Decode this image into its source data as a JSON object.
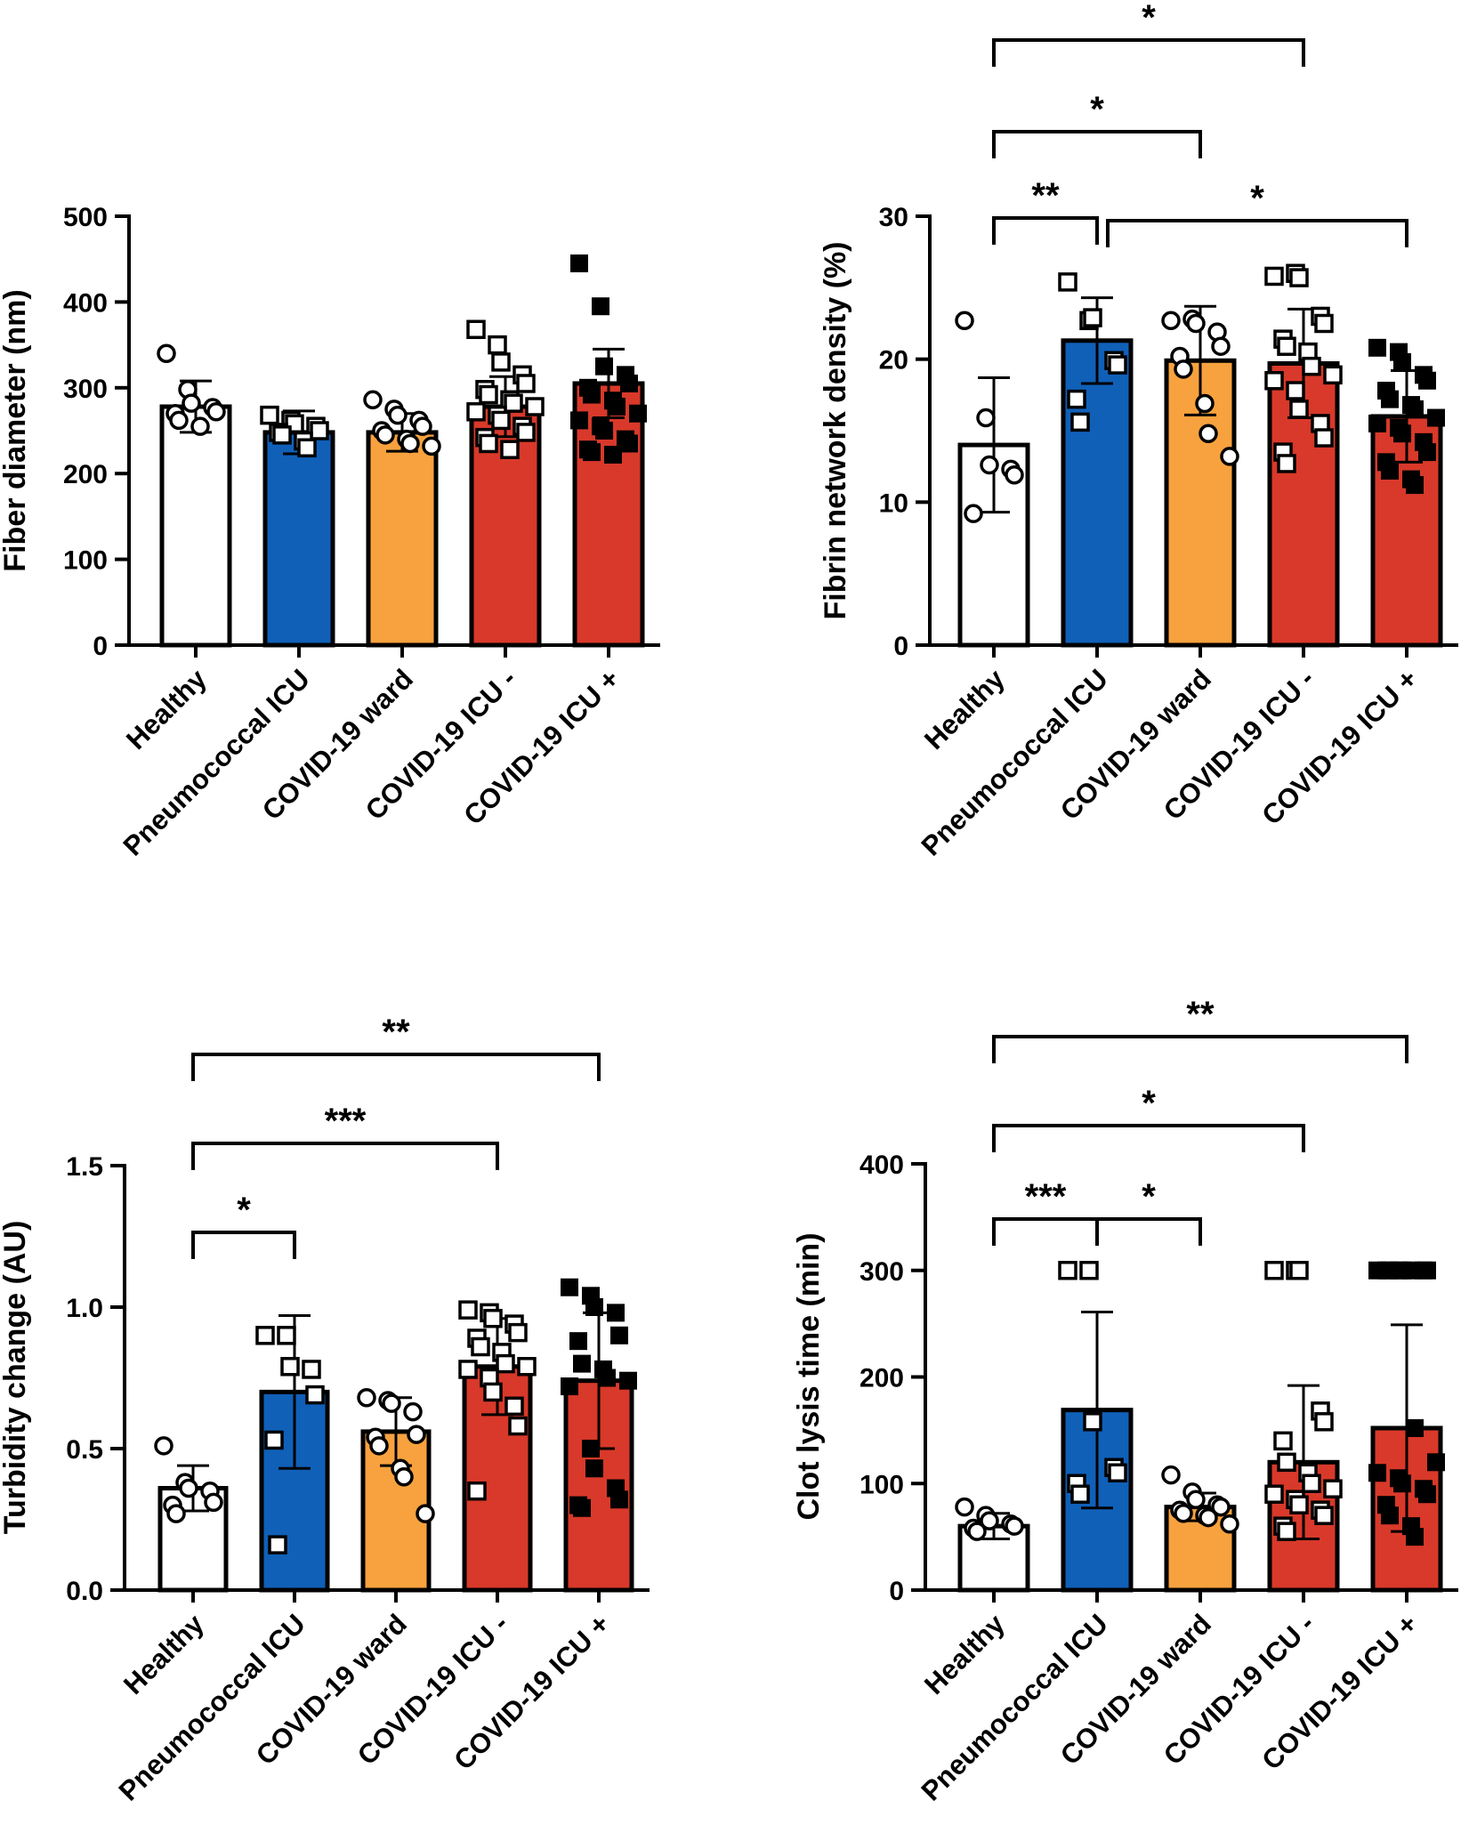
{
  "colors": {
    "healthy": "#ffffff",
    "pneumococcal": "#1060b8",
    "covid_ward": "#f7a23e",
    "covid_icu_neg": "#d8392a",
    "covid_icu_pos": "#d8392a",
    "axis": "#000000"
  },
  "chart_data": [
    {
      "type": "bar",
      "panel": "top-left",
      "categories": [
        "Healthy",
        "Pneumococcal ICU",
        "COVID-19 ward",
        "COVID-19 ICU -",
        "COVID-19 ICU +"
      ],
      "means": [
        278,
        248,
        248,
        278,
        305
      ],
      "sd": [
        30,
        25,
        22,
        35,
        40
      ],
      "points": [
        [
          340,
          298,
          282,
          277,
          272,
          270,
          262,
          255
        ],
        [
          268,
          262,
          258,
          255,
          250,
          248,
          245,
          238,
          230
        ],
        [
          286,
          275,
          268,
          262,
          255,
          250,
          245,
          240,
          235,
          232
        ],
        [
          368,
          350,
          330,
          315,
          305,
          298,
          292,
          286,
          282,
          278,
          272,
          268,
          262,
          255,
          248,
          242,
          235,
          228
        ],
        [
          445,
          395,
          325,
          315,
          305,
          300,
          292,
          285,
          278,
          270,
          262,
          255,
          250,
          240,
          235,
          228,
          225,
          222
        ]
      ],
      "markers": [
        "circle-open",
        "square-open",
        "circle-open",
        "square-open",
        "square-filled"
      ],
      "ylabel": "Fiber diameter (nm)",
      "ylim": [
        0,
        500
      ],
      "yticks": [
        "0",
        "100",
        "200",
        "300",
        "400",
        "500"
      ],
      "significance": []
    },
    {
      "type": "bar",
      "panel": "top-right",
      "categories": [
        "Healthy",
        "Pneumococcal ICU",
        "COVID-19 ward",
        "COVID-19 ICU -",
        "COVID-19 ICU +"
      ],
      "means": [
        14.0,
        21.3,
        19.9,
        19.7,
        16.0
      ],
      "sd": [
        4.7,
        3.0,
        3.8,
        3.8,
        3.2
      ],
      "points": [
        [
          22.7,
          15.9,
          12.6,
          12.3,
          11.9,
          9.2
        ],
        [
          25.4,
          22.7,
          22.9,
          19.9,
          19.6,
          17.2,
          15.6
        ],
        [
          22.7,
          22.8,
          22.5,
          21.9,
          20.9,
          20.2,
          19.3,
          16.9,
          14.8,
          13.2
        ],
        [
          25.8,
          26.0,
          25.7,
          23.0,
          22.5,
          21.4,
          20.9,
          20.5,
          19.5,
          18.9,
          18.5,
          17.8,
          16.5,
          15.5,
          14.5,
          13.5,
          12.7
        ],
        [
          20.8,
          20.5,
          19.8,
          18.9,
          18.5,
          17.8,
          17.2,
          16.8,
          16.5,
          15.9,
          15.5,
          15.2,
          14.8,
          14.2,
          13.5,
          12.8,
          12.2,
          11.6,
          11.2
        ]
      ],
      "markers": [
        "circle-open",
        "square-open",
        "circle-open",
        "square-open",
        "square-filled"
      ],
      "ylabel": "Fibrin network density (%)",
      "ylim": [
        0,
        30
      ],
      "yticks": [
        "0",
        "10",
        "20",
        "30"
      ],
      "significance": [
        {
          "from": 0,
          "to": 3,
          "label": "*"
        },
        {
          "from": 0,
          "to": 2,
          "label": "*"
        },
        {
          "from": 0,
          "to": 1,
          "label": "**"
        },
        {
          "from": 1,
          "to": 4,
          "label": "*"
        }
      ]
    },
    {
      "type": "bar",
      "panel": "bottom-left",
      "categories": [
        "Healthy",
        "Pneumococcal ICU",
        "COVID-19 ward",
        "COVID-19 ICU -",
        "COVID-19 ICU +"
      ],
      "means": [
        0.36,
        0.7,
        0.56,
        0.79,
        0.74
      ],
      "sd": [
        0.08,
        0.27,
        0.12,
        0.17,
        0.24
      ],
      "points": [
        [
          0.51,
          0.38,
          0.36,
          0.35,
          0.31,
          0.3,
          0.27
        ],
        [
          0.9,
          0.9,
          0.79,
          0.78,
          0.69,
          0.53,
          0.16
        ],
        [
          0.68,
          0.67,
          0.66,
          0.63,
          0.55,
          0.54,
          0.51,
          0.43,
          0.4,
          0.27
        ],
        [
          0.99,
          0.98,
          0.96,
          0.94,
          0.91,
          0.89,
          0.86,
          0.84,
          0.8,
          0.79,
          0.78,
          0.75,
          0.7,
          0.65,
          0.58,
          0.35
        ],
        [
          1.07,
          1.04,
          1.0,
          0.98,
          0.9,
          0.88,
          0.8,
          0.78,
          0.75,
          0.74,
          0.72,
          0.5,
          0.43,
          0.36,
          0.32,
          0.3,
          0.29
        ]
      ],
      "markers": [
        "circle-open",
        "square-open",
        "circle-open",
        "square-open",
        "square-filled"
      ],
      "ylabel": "Turbidity change (AU)",
      "ylim": [
        0,
        1.5
      ],
      "yticks": [
        "0.0",
        "0.5",
        "1.0",
        "1.5"
      ],
      "significance": [
        {
          "from": 0,
          "to": 4,
          "label": "**"
        },
        {
          "from": 0,
          "to": 3,
          "label": "***"
        },
        {
          "from": 0,
          "to": 1,
          "label": "*"
        }
      ]
    },
    {
      "type": "bar",
      "panel": "bottom-right",
      "categories": [
        "Healthy",
        "Pneumococcal ICU",
        "COVID-19 ward",
        "COVID-19 ICU -",
        "COVID-19 ICU +"
      ],
      "means": [
        60,
        169,
        78,
        120,
        152
      ],
      "sd": [
        12,
        92,
        13,
        72,
        97
      ],
      "points": [
        [
          78,
          70,
          65,
          62,
          60,
          58,
          55
        ],
        [
          300,
          300,
          158,
          115,
          110,
          100,
          90
        ],
        [
          108,
          92,
          85,
          80,
          78,
          75,
          72,
          70,
          68,
          62
        ],
        [
          300,
          300,
          300,
          168,
          158,
          140,
          120,
          110,
          100,
          95,
          90,
          85,
          80,
          75,
          70,
          60,
          55
        ],
        [
          300,
          300,
          300,
          300,
          300,
          300,
          300,
          300,
          152,
          120,
          110,
          105,
          100,
          95,
          90,
          80,
          70,
          60,
          50
        ]
      ],
      "markers": [
        "circle-open",
        "square-open",
        "circle-open",
        "square-open",
        "square-filled"
      ],
      "ylabel": "Clot lysis time (min)",
      "ylim": [
        0,
        400
      ],
      "yticks": [
        "0",
        "100",
        "200",
        "300",
        "400"
      ],
      "significance": [
        {
          "from": 0,
          "to": 4,
          "label": "**"
        },
        {
          "from": 0,
          "to": 3,
          "label": "*"
        },
        {
          "from": 0,
          "to": 1,
          "label": "***"
        },
        {
          "from": 1,
          "to": 2,
          "label": "*"
        }
      ]
    }
  ]
}
